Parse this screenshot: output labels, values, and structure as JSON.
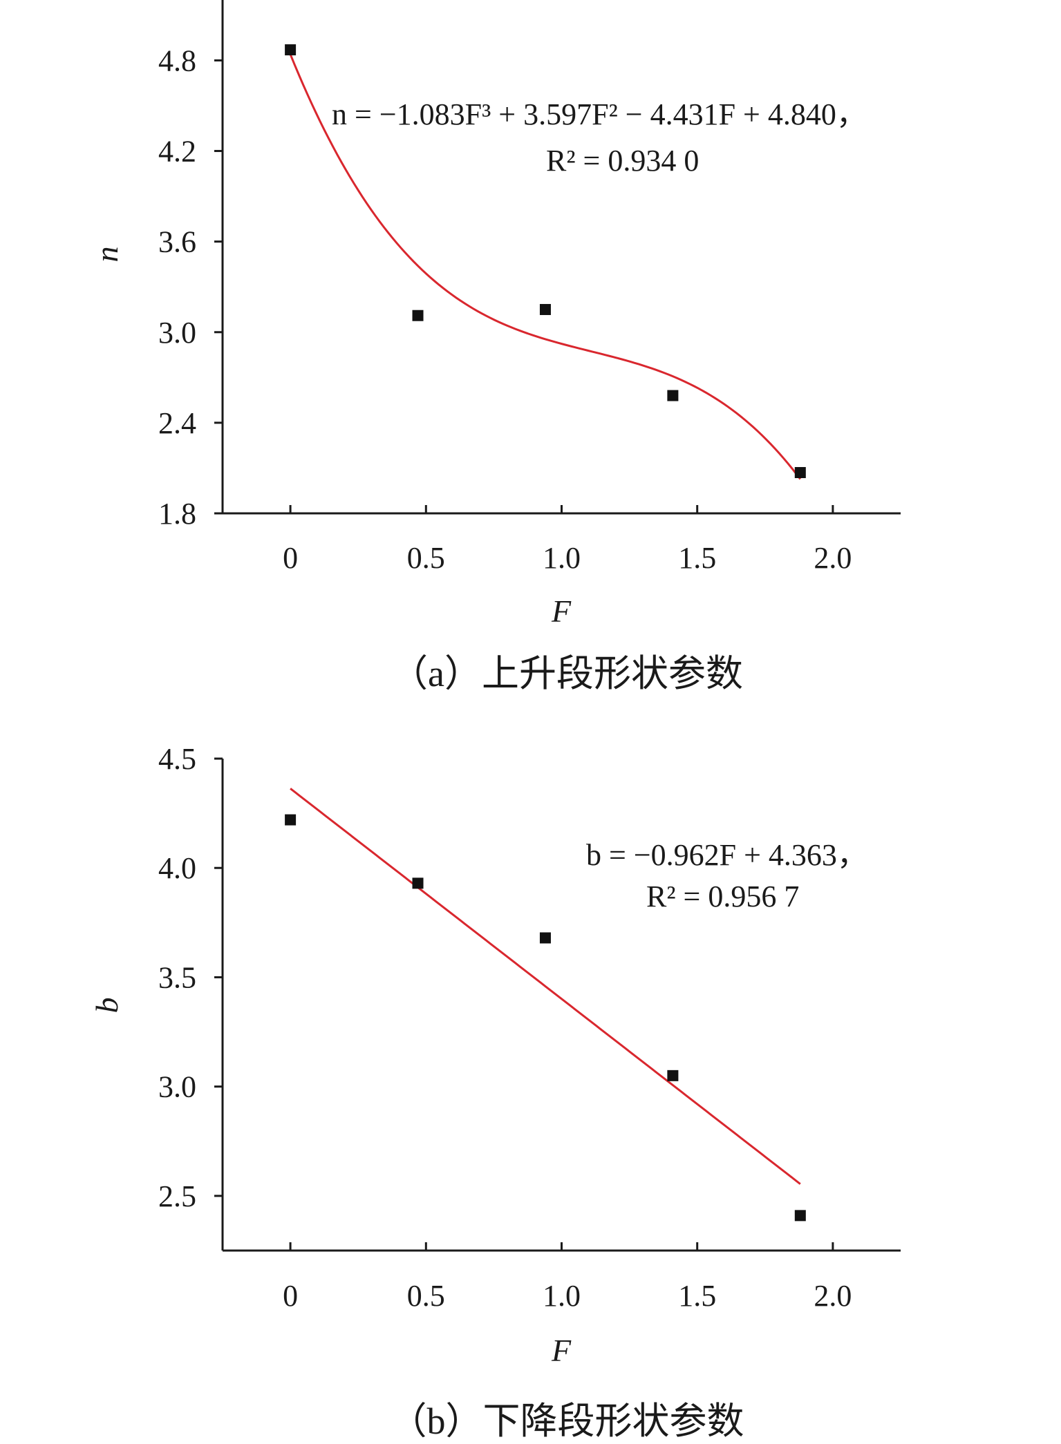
{
  "chart_data": [
    {
      "type": "scatter",
      "caption": "（a）上升段形状参数",
      "xlabel": "F",
      "ylabel": "n",
      "xlim": [
        -0.25,
        2.25
      ],
      "ylim": [
        1.8,
        5.2
      ],
      "xticks": [
        0,
        0.5,
        1.0,
        1.5,
        2.0
      ],
      "xtick_labels": [
        "0",
        "0.5",
        "1.0",
        "1.5",
        "2.0"
      ],
      "yticks": [
        1.8,
        2.4,
        3.0,
        3.6,
        4.2,
        4.8
      ],
      "ytick_labels": [
        "1.8",
        "2.4",
        "3.0",
        "3.6",
        "4.2",
        "4.8"
      ],
      "grid": false,
      "series": [
        {
          "x": [
            0,
            0.47,
            0.94,
            1.41,
            1.88
          ],
          "y": [
            4.87,
            3.11,
            3.15,
            2.58,
            2.07
          ]
        }
      ],
      "fit": {
        "kind": "polynomial",
        "coefficients": [
          4.84,
          -4.431,
          3.597,
          -1.083
        ],
        "xrange": [
          0,
          1.88
        ],
        "color": "#d9272e"
      },
      "equation": {
        "line1": "n = −1.083F³ + 3.597F² − 4.431F + 4.840，",
        "line2": "R² = 0.934 0"
      },
      "marker_color": "#111111"
    },
    {
      "type": "scatter",
      "caption": "（b）下降段形状参数",
      "xlabel": "F",
      "ylabel": "b",
      "xlim": [
        -0.25,
        2.25
      ],
      "ylim": [
        2.25,
        4.5
      ],
      "xticks": [
        0,
        0.5,
        1.0,
        1.5,
        2.0
      ],
      "xtick_labels": [
        "0",
        "0.5",
        "1.0",
        "1.5",
        "2.0"
      ],
      "yticks": [
        2.5,
        3.0,
        3.5,
        4.0,
        4.5
      ],
      "ytick_labels": [
        "2.5",
        "3.0",
        "3.5",
        "4.0",
        "4.5"
      ],
      "grid": false,
      "series": [
        {
          "x": [
            0,
            0.47,
            0.94,
            1.41,
            1.88
          ],
          "y": [
            4.22,
            3.93,
            3.68,
            3.05,
            2.41
          ]
        }
      ],
      "fit": {
        "kind": "polynomial",
        "coefficients": [
          4.363,
          -0.962
        ],
        "xrange": [
          0,
          1.88
        ],
        "color": "#d9272e"
      },
      "equation": {
        "line1": "b = −0.962F + 4.363，",
        "line2": "R² = 0.956 7"
      },
      "marker_color": "#111111"
    }
  ]
}
